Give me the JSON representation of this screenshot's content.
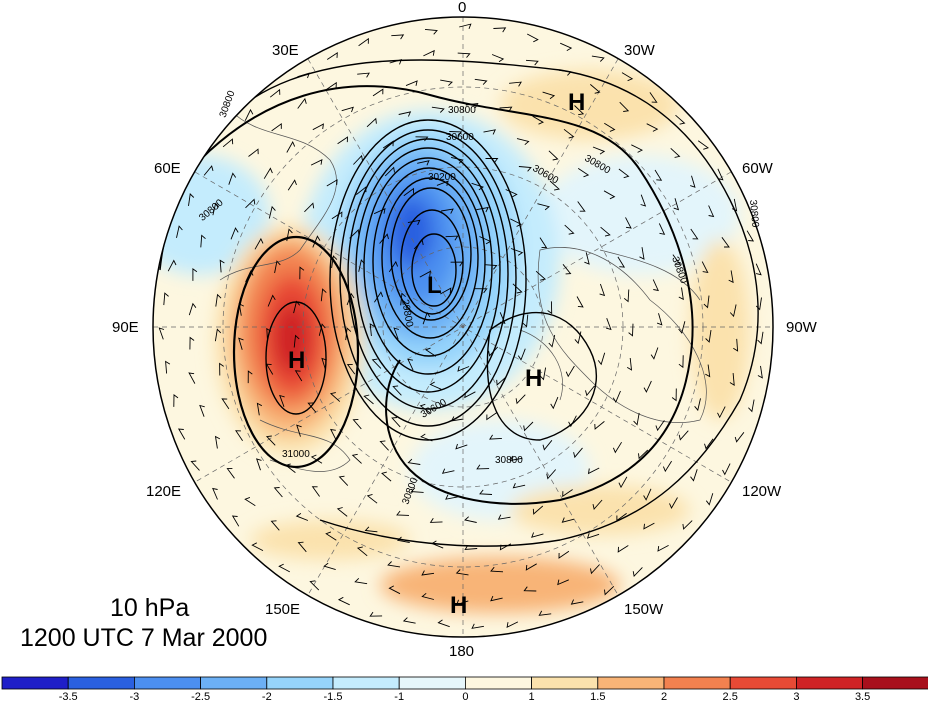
{
  "title": {
    "level": "10 hPa",
    "datetime": "1200 UTC 7 Mar 2000"
  },
  "longitude_labels": [
    "0",
    "30W",
    "60W",
    "90W",
    "120W",
    "150W",
    "180",
    "150E",
    "120E",
    "90E",
    "60E",
    "30E"
  ],
  "pressure_systems": [
    "H",
    "H",
    "L",
    "H",
    "H"
  ],
  "contour_labels": [
    "30800",
    "30600",
    "30200",
    "29800",
    "30800",
    "30800",
    "30600",
    "30800",
    "30800",
    "30800",
    "30800",
    "31000",
    "30600",
    "30800"
  ],
  "colorbar": {
    "ticks": [
      "-3.5",
      "-3",
      "-2.5",
      "-2",
      "-1.5",
      "-1",
      "0",
      "1",
      "1.5",
      "2",
      "2.5",
      "3",
      "3.5"
    ],
    "colors": [
      "#1f1fc8",
      "#2a60e0",
      "#4c8ff0",
      "#6cb0f5",
      "#96d4fb",
      "#c4ecfd",
      "#e6f7fb",
      "#fdf7e0",
      "#fbe2ad",
      "#f8b477",
      "#f2814f",
      "#e84a35",
      "#cf2325",
      "#a8101c"
    ]
  },
  "projection": "north-polar-stereographic"
}
